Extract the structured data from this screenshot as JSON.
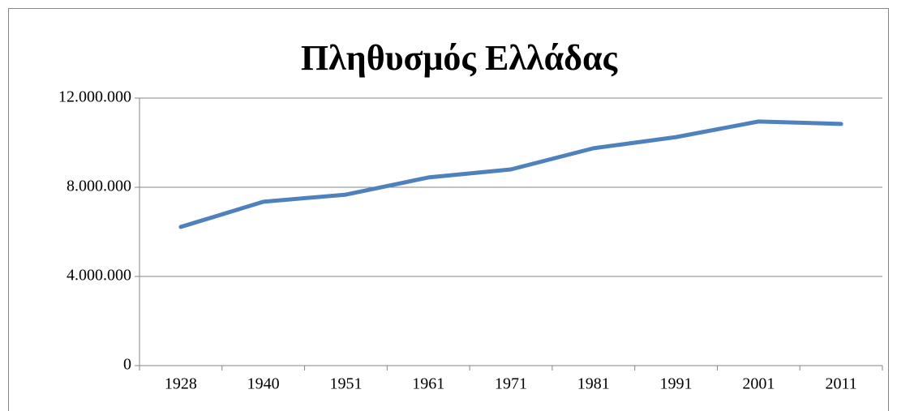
{
  "chart_data": {
    "type": "line",
    "title": "Πληθυσμός Ελλάδας",
    "categories": [
      "1928",
      "1940",
      "1951",
      "1961",
      "1971",
      "1981",
      "1991",
      "2001",
      "2011"
    ],
    "series": [
      {
        "name": "Πληθυσμός",
        "color": "#4f81bd",
        "values": [
          6220000,
          7350000,
          7670000,
          8440000,
          8800000,
          9750000,
          10250000,
          10950000,
          10840000
        ]
      }
    ],
    "ylim": [
      0,
      12000000
    ],
    "yticks": [
      0,
      {
        "value": 4000000,
        "label": "4.000.000"
      },
      {
        "value": 8000000,
        "label": "8.000.000"
      },
      {
        "value": 12000000,
        "label": "12.000.000"
      }
    ],
    "grid": true
  }
}
